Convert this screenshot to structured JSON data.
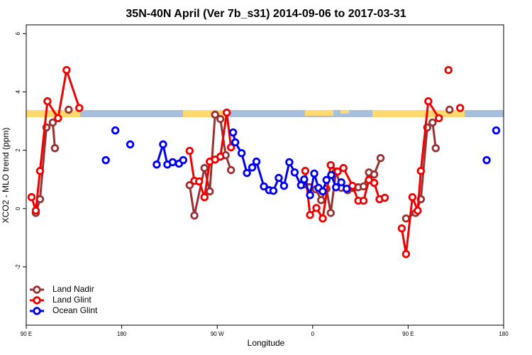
{
  "chart_data": {
    "type": "line",
    "title": "35N-40N April (Ver 7b_s31)   2014-09-06 to 2017-03-31",
    "x_label": "Longitude",
    "y_label": "XCO2 - MLO trend (ppm)",
    "xlim": [
      90,
      540
    ],
    "ylim": [
      -4,
      6.3
    ],
    "xticks": [
      {
        "value": 90,
        "label": "90 E"
      },
      180,
      {
        "value": 270,
        "label": "90 W"
      },
      {
        "value": 360,
        "label": "0"
      },
      {
        "value": 450,
        "label": "90 E"
      },
      {
        "value": 540,
        "label": "180"
      }
    ],
    "yticks": [
      -2,
      0,
      2,
      4,
      6
    ],
    "legend": "bottom-left",
    "series": [
      {
        "name": "Land Nadir",
        "color": "#993333",
        "x": [
          99,
          103,
          109,
          115,
          117,
          null,
          130,
          null,
          244,
          248.5,
          258,
          263,
          268,
          273,
          278,
          283,
          null,
          352,
          357,
          363,
          368,
          373,
          377,
          382,
          387,
          393,
          398,
          403,
          408,
          413,
          418,
          424,
          null,
          448,
          457,
          462,
          468,
          473,
          476,
          null,
          489
        ],
        "values": [
          -0.15,
          0.32,
          2.78,
          2.95,
          2.07,
          null,
          3.39,
          null,
          0.8,
          -0.24,
          1.39,
          0.59,
          3.22,
          3.07,
          1.83,
          1.32,
          null,
          0.83,
          0.73,
          0.66,
          0.29,
          0.68,
          -0.15,
          1.27,
          0.71,
          0.63,
          0.71,
          0.73,
          0.76,
          1.24,
          1.17,
          1.73,
          null,
          -0.34,
          -0.15,
          0.32,
          2.78,
          2.95,
          2.07,
          null,
          3.39
        ]
      },
      {
        "name": "Land Glint",
        "color": "#ee0000",
        "x": [
          95,
          99,
          103,
          110,
          120,
          128,
          140,
          null,
          244,
          248.5,
          253,
          258,
          263,
          268,
          273,
          279,
          283,
          null,
          353,
          357.5,
          363.5,
          369.5,
          377,
          383.5,
          389,
          397.5,
          403,
          408,
          413,
          418,
          423,
          428,
          null,
          444,
          448,
          454,
          459,
          462,
          469,
          479,
          null,
          488,
          null,
          499
        ],
        "values": [
          0.39,
          -0.07,
          1.29,
          3.68,
          3.1,
          4.75,
          3.45,
          null,
          1.98,
          0.95,
          0.93,
          0.39,
          1.61,
          1.68,
          1.78,
          3.29,
          2.1,
          null,
          1.29,
          -0.22,
          0.02,
          -0.34,
          1.49,
          1.27,
          1.39,
          0.78,
          0.27,
          0.27,
          0.98,
          0.88,
          0.32,
          0.37,
          null,
          -0.68,
          -1.56,
          0.39,
          -0.07,
          1.29,
          3.68,
          3.1,
          null,
          4.75,
          null,
          3.45
        ]
      },
      {
        "name": "Ocean Glint",
        "color": "#0000ee",
        "x": [
          165,
          null,
          174,
          null,
          188,
          null,
          213,
          219,
          223,
          228,
          234,
          238,
          null,
          285,
          287,
          293,
          298,
          303,
          307,
          314,
          319,
          323,
          328,
          333,
          338,
          343,
          349,
          352,
          357.5,
          361.5,
          365.5,
          369.5,
          373,
          377.5,
          382,
          387,
          392,
          null,
          524,
          null,
          533
        ],
        "values": [
          1.66,
          null,
          2.68,
          null,
          2.2,
          null,
          1.51,
          2.2,
          1.51,
          1.59,
          1.54,
          1.66,
          null,
          2.61,
          2.27,
          1.9,
          1.22,
          1.41,
          1.61,
          0.76,
          0.63,
          0.61,
          1.05,
          0.78,
          1.59,
          1.24,
          0.8,
          1.0,
          0.46,
          1.2,
          0.71,
          0.59,
          0.98,
          1.15,
          0.73,
          0.9,
          0.68,
          null,
          1.66,
          null,
          2.68
        ]
      }
    ]
  }
}
